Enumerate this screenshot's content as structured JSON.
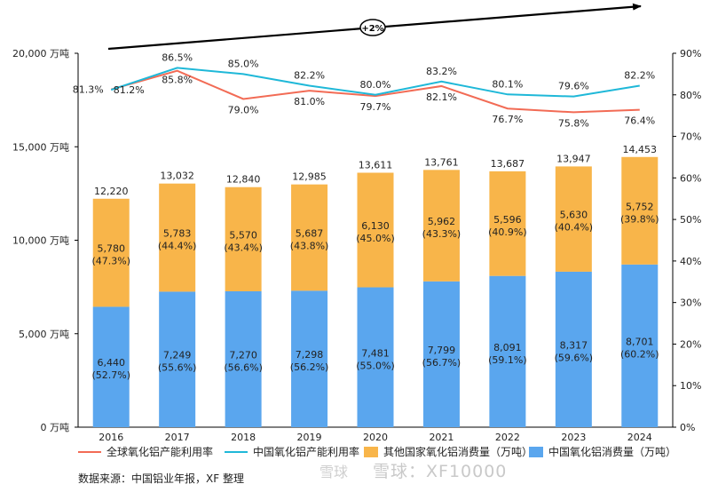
{
  "chart_data": {
    "type": "bar",
    "stacked": true,
    "categories": [
      "2016",
      "2017",
      "2018",
      "2019",
      "2020",
      "2021",
      "2022",
      "2023",
      "2024"
    ],
    "totals": [
      12220,
      13032,
      12840,
      12985,
      13611,
      13761,
      13687,
      13947,
      14453
    ],
    "total_labels": [
      "12,220",
      "13,032",
      "12,840",
      "12,985",
      "13,611",
      "13,761",
      "13,687",
      "13,947",
      "14,453"
    ],
    "series": [
      {
        "name": "中国氧化铝消费量（万吨）",
        "color": "#5aa6ee",
        "values": [
          6440,
          7249,
          7270,
          7298,
          7481,
          7799,
          8091,
          8317,
          8701
        ],
        "labels": [
          "6,440",
          "7,249",
          "7,270",
          "7,298",
          "7,481",
          "7,799",
          "8,091",
          "8,317",
          "8,701"
        ],
        "shares": [
          "(52.7%)",
          "(55.6%)",
          "(56.6%)",
          "(56.2%)",
          "(55.0%)",
          "(56.7%)",
          "(59.1%)",
          "(59.6%)",
          "(60.2%)"
        ]
      },
      {
        "name": "其他国家氧化铝消费量（万吨）",
        "color": "#f8b54a",
        "values": [
          5780,
          5783,
          5570,
          5687,
          6130,
          5962,
          5596,
          5630,
          5752
        ],
        "labels": [
          "5,780",
          "5,783",
          "5,570",
          "5,687",
          "6,130",
          "5,962",
          "5,596",
          "5,630",
          "5,752"
        ],
        "shares": [
          "(47.3%)",
          "(44.4%)",
          "(43.4%)",
          "(43.8%)",
          "(45.0%)",
          "(43.3%)",
          "(40.9%)",
          "(40.4%)",
          "(39.8%)"
        ]
      }
    ],
    "lines": [
      {
        "name": "全球氧化铝产能利用率",
        "color": "#f26b55",
        "values": [
          81.3,
          85.8,
          79.0,
          81.0,
          79.7,
          82.1,
          76.7,
          75.8,
          76.4
        ],
        "labels": [
          "81.3%",
          "85.8%",
          "79.0%",
          "81.0%",
          "79.7%",
          "82.1%",
          "76.7%",
          "75.8%",
          "76.4%"
        ]
      },
      {
        "name": "中国氧化铝产能利用率",
        "color": "#1fb8d8",
        "values": [
          81.2,
          86.5,
          85.0,
          82.2,
          80.0,
          83.2,
          80.1,
          79.6,
          82.2
        ],
        "labels": [
          "81.2%",
          "86.5%",
          "85.0%",
          "82.2%",
          "80.0%",
          "83.2%",
          "80.1%",
          "79.6%",
          "82.2%"
        ]
      }
    ],
    "y_left": {
      "range": [
        0,
        20000
      ],
      "ticks": [
        0,
        5000,
        10000,
        15000,
        20000
      ],
      "tick_labels": [
        "0 万吨",
        "5,000 万吨",
        "10,000 万吨",
        "15,000 万吨",
        "20,000 万吨"
      ]
    },
    "y_right": {
      "range": [
        0,
        90
      ],
      "ticks": [
        0,
        10,
        20,
        30,
        40,
        50,
        60,
        70,
        80,
        90
      ],
      "tick_labels": [
        "0%",
        "10%",
        "20%",
        "30%",
        "40%",
        "50%",
        "60%",
        "70%",
        "80%",
        "90%"
      ]
    },
    "trend_annotation": "+2%",
    "grid": false
  },
  "legend": {
    "items": [
      {
        "label": "全球氧化铝产能利用率",
        "color": "#f26b55",
        "kind": "line"
      },
      {
        "label": "中国氧化铝产能利用率",
        "color": "#1fb8d8",
        "kind": "line"
      },
      {
        "label": "其他国家氧化铝消费量（万吨）",
        "color": "#f8b54a",
        "kind": "box"
      },
      {
        "label": "中国氧化铝消费量（万吨）",
        "color": "#5aa6ee",
        "kind": "box"
      }
    ]
  },
  "source_text": "数据来源：中国铝业年报，XF 整理",
  "watermark": "雪球：XF10000",
  "watermark_small": "雪球"
}
